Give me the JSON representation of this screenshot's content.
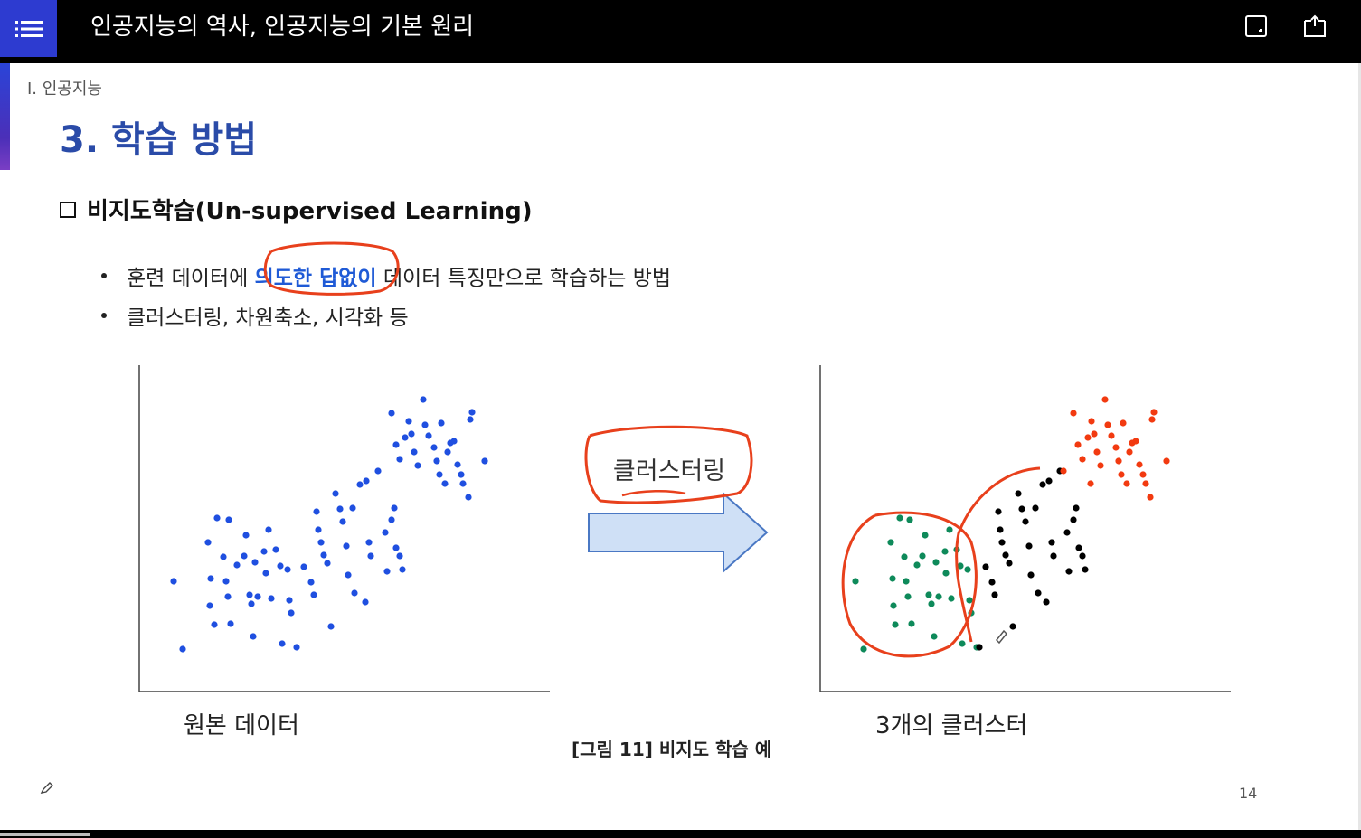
{
  "header": {
    "title": "인공지능의 역사, 인공지능의 기본 원리"
  },
  "slide": {
    "section": "I. 인공지능",
    "title": "3. 학습 방법",
    "subheading": "비지도학습(Un-supervised Learning)",
    "bullet1": {
      "before": "훈련 데이터에 ",
      "highlight": "의도한 답없이",
      "after": " 데이터 특징만으로 학습하는 방법"
    },
    "bullet2": "클러스터링, 차원축소, 시각화 등",
    "left_chart_label": "원본 데이터",
    "right_chart_label": "3개의 클러스터",
    "arrow_label": "클러스터링",
    "figure_caption": "[그림 11] 비지도 학습 예",
    "page_number": "14"
  },
  "colors": {
    "menu": "#2d3bd0",
    "title": "#2a4ba8",
    "highlight": "#1f5ad6",
    "annotation": "#e8401c",
    "blue_points": "#1f4fe0",
    "green_cluster": "#0e8a5a",
    "black_cluster": "#000000",
    "red_cluster": "#f23a10",
    "arrow_fill": "#cfe0f6",
    "arrow_stroke": "#4a78c4"
  },
  "icons": [
    "menu-icon",
    "window-icon",
    "export-icon",
    "pen-icon"
  ]
}
